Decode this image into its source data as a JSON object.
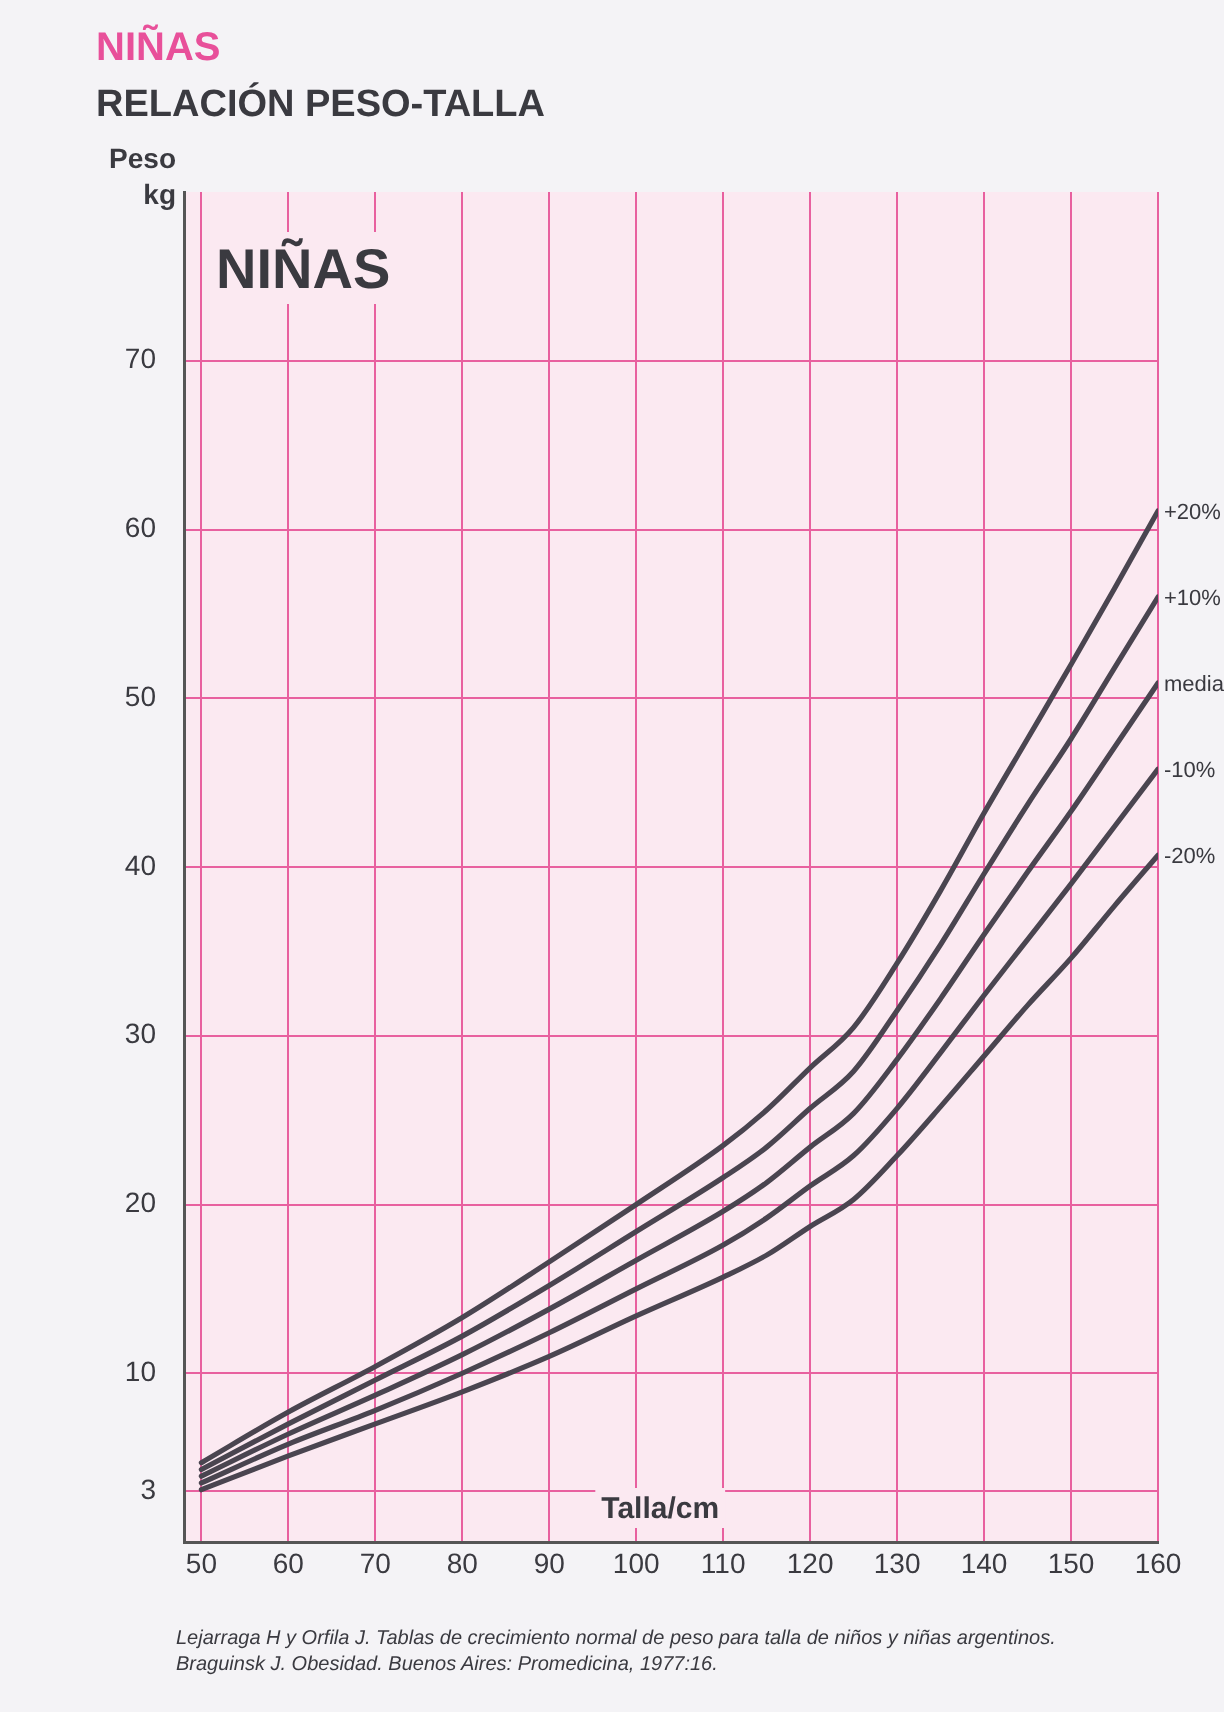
{
  "chart_data": {
    "type": "line",
    "title": "NIÑAS",
    "subtitle": "RELACIÓN PESO-TALLA",
    "xlabel": "Talla/cm",
    "ylabel": "Peso kg",
    "annotations": [
      "NIÑAS",
      "Lejarraga H y Orfila J. Tablas de crecimiento normal de peso para talla de niños y niñas argentinos. Braguinsk J. Obesidad. Buenos Aires: Promedicina, 1977:16."
    ],
    "x": [
      50,
      60,
      70,
      80,
      90,
      100,
      110,
      115,
      120,
      125,
      130,
      135,
      140,
      145,
      150,
      155,
      160
    ],
    "series": [
      {
        "name": "+20%",
        "color": "#4a4550",
        "values": [
          4.7,
          7.7,
          10.4,
          13.3,
          16.6,
          20.0,
          23.5,
          25.6,
          28.1,
          30.5,
          34.3,
          38.6,
          43.2,
          47.6,
          52.0,
          56.5,
          61.1
        ]
      },
      {
        "name": "+10%",
        "color": "#4a4550",
        "values": [
          4.3,
          7.0,
          9.6,
          12.2,
          15.2,
          18.4,
          21.6,
          23.4,
          25.7,
          27.9,
          31.5,
          35.4,
          39.6,
          43.7,
          47.6,
          51.8,
          56.0
        ]
      },
      {
        "name": "media",
        "color": "#4a4550",
        "values": [
          3.9,
          6.4,
          8.7,
          11.1,
          13.8,
          16.7,
          19.6,
          21.3,
          23.4,
          25.4,
          28.6,
          32.2,
          36.0,
          39.7,
          43.3,
          47.1,
          50.9
        ]
      },
      {
        "name": "-10%",
        "color": "#4a4550",
        "values": [
          3.5,
          5.8,
          7.8,
          10.0,
          12.4,
          15.0,
          17.6,
          19.2,
          21.1,
          22.9,
          25.7,
          29.0,
          32.4,
          35.7,
          39.0,
          42.4,
          45.8
        ]
      },
      {
        "name": "-20%",
        "color": "#4a4550",
        "values": [
          3.1,
          5.1,
          7.0,
          8.9,
          11.0,
          13.4,
          15.7,
          17.0,
          18.7,
          20.3,
          22.9,
          25.8,
          28.8,
          31.8,
          34.6,
          37.7,
          40.7
        ]
      }
    ],
    "xlim": [
      48,
      160
    ],
    "xticks": [
      50,
      60,
      70,
      80,
      90,
      100,
      110,
      120,
      130,
      140,
      150,
      160
    ],
    "ylim": [
      0,
      80
    ],
    "yticks": [
      3,
      10,
      20,
      30,
      40,
      50,
      60,
      70
    ],
    "grid": true,
    "legend": false,
    "marker": "none",
    "line_style": "solid"
  }
}
